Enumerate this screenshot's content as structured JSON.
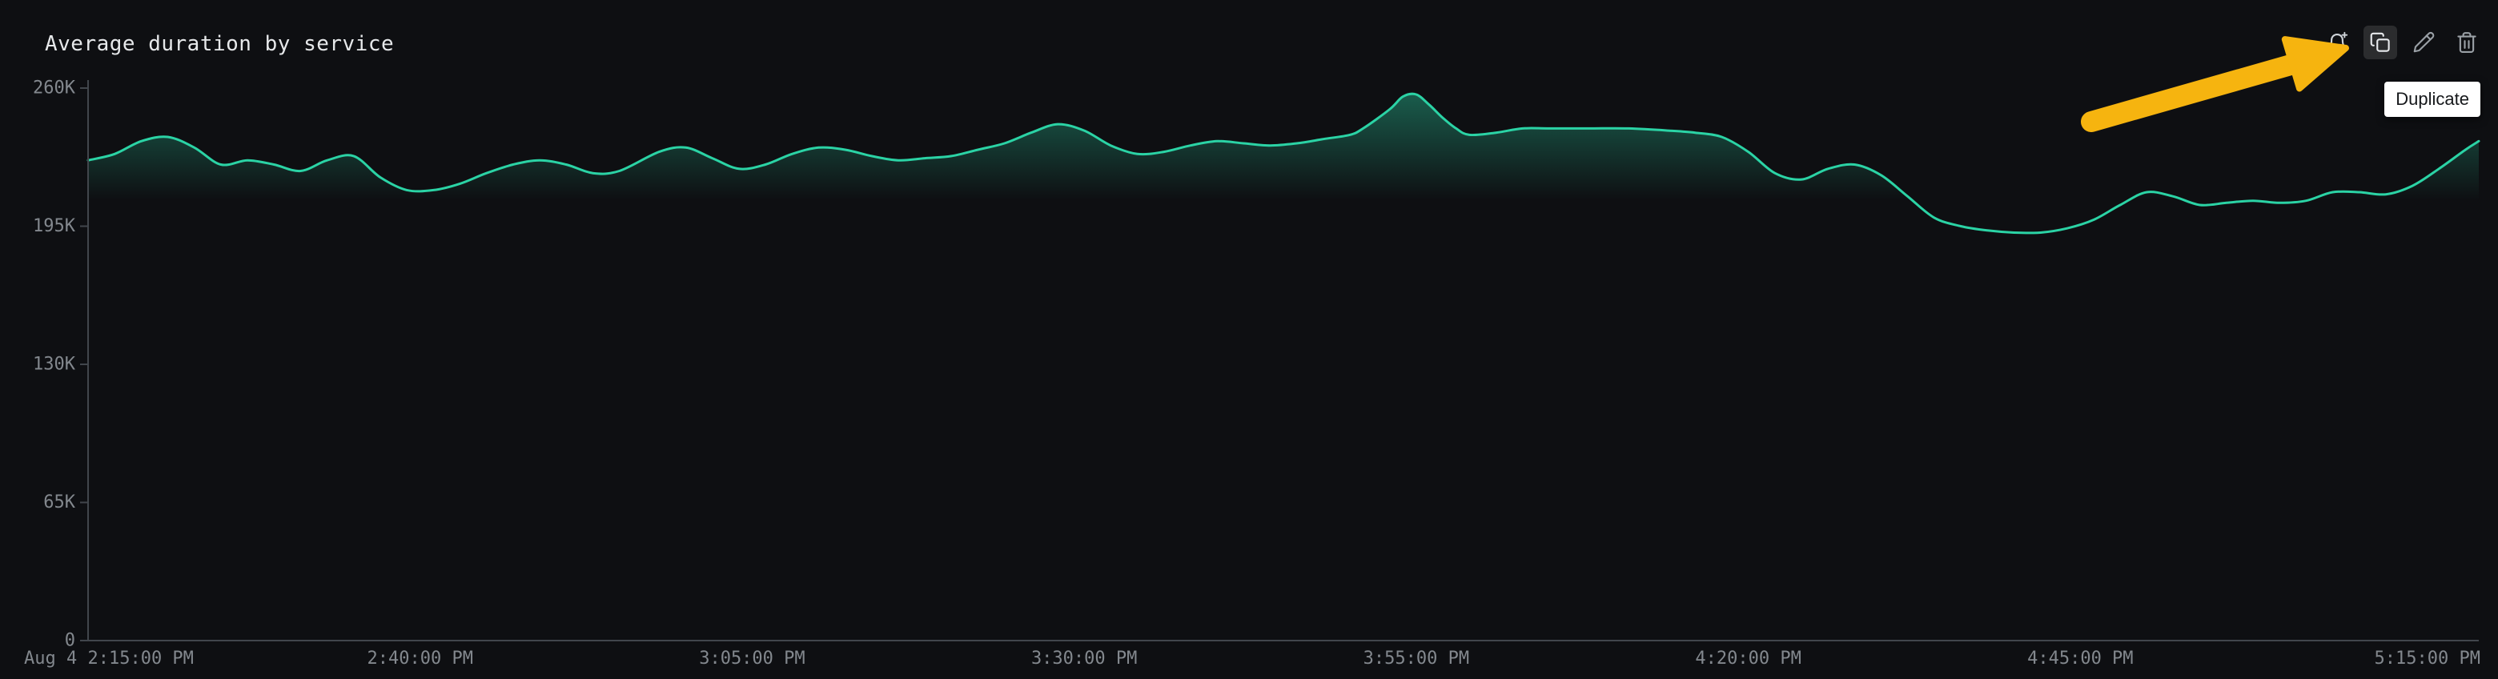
{
  "panel": {
    "title": "Average duration by service",
    "toolbar": [
      {
        "name": "create-monitor",
        "icon": "bell-plus-icon"
      },
      {
        "name": "duplicate",
        "icon": "copy-icon",
        "state": "hover"
      },
      {
        "name": "edit",
        "icon": "pencil-icon"
      },
      {
        "name": "delete",
        "icon": "trash-icon"
      }
    ],
    "tooltip_label": "Duplicate"
  },
  "colors": {
    "background": "#0e0f12",
    "title_text": "#e6e8ea",
    "axis_text": "#83888e",
    "axis_line": "#41464c",
    "series_line": "#2bd3a5",
    "tooltip_bg": "#ffffff",
    "tooltip_text": "#16181b",
    "annotation_arrow": "#f6b40f"
  },
  "chart_data": {
    "type": "line",
    "title": "Average duration by service",
    "ylim": [
      0,
      260000
    ],
    "x_range_minutes": [
      0,
      180
    ],
    "grid": false,
    "legend": false,
    "y_ticks": [
      {
        "label": "0",
        "value": 0
      },
      {
        "label": "65K",
        "value": 65000
      },
      {
        "label": "130K",
        "value": 130000
      },
      {
        "label": "195K",
        "value": 195000
      },
      {
        "label": "260K",
        "value": 260000
      }
    ],
    "x_ticks": [
      {
        "label": "Aug 4 2:15:00 PM",
        "minutes": 0,
        "align": "left"
      },
      {
        "label": "2:40:00 PM",
        "minutes": 25,
        "align": "center"
      },
      {
        "label": "3:05:00 PM",
        "minutes": 50,
        "align": "center"
      },
      {
        "label": "3:30:00 PM",
        "minutes": 75,
        "align": "center"
      },
      {
        "label": "3:55:00 PM",
        "minutes": 100,
        "align": "center"
      },
      {
        "label": "4:20:00 PM",
        "minutes": 125,
        "align": "center"
      },
      {
        "label": "4:45:00 PM",
        "minutes": 150,
        "align": "center"
      },
      {
        "label": "5:15:00 PM",
        "minutes": 180,
        "align": "right"
      }
    ],
    "series": [
      {
        "name": "Average duration",
        "color": "#2bd3a5",
        "x_minutes": [
          0,
          2,
          4,
          6,
          8,
          10,
          12,
          14,
          16,
          18,
          20,
          22,
          24,
          26,
          28,
          30,
          32,
          34,
          36,
          38,
          40,
          43,
          45,
          47,
          49,
          51,
          53,
          55,
          57,
          59,
          61,
          63,
          65,
          67,
          69,
          71,
          73,
          75,
          77,
          79,
          81,
          83,
          85,
          87,
          89,
          91,
          93,
          95,
          96,
          98,
          99,
          100,
          101,
          102,
          103,
          104,
          106,
          108,
          110,
          113,
          116,
          119,
          121,
          123,
          125,
          127,
          129,
          131,
          133,
          135,
          137,
          139,
          141,
          143,
          145,
          147,
          149,
          151,
          153,
          155,
          157,
          159,
          161,
          163,
          165,
          167,
          169,
          171,
          173,
          175,
          177,
          179,
          180
        ],
        "values": [
          226000,
          229000,
          235000,
          237000,
          232000,
          224000,
          226000,
          224000,
          221000,
          226000,
          228000,
          218000,
          212000,
          212000,
          215000,
          220000,
          224000,
          226000,
          224000,
          220000,
          221000,
          230000,
          232000,
          227000,
          222000,
          224000,
          229000,
          232000,
          231000,
          228000,
          226000,
          227000,
          228000,
          231000,
          234000,
          239000,
          243000,
          240000,
          233000,
          229000,
          230000,
          233000,
          235000,
          234000,
          233000,
          234000,
          236000,
          238000,
          241000,
          250000,
          256000,
          257000,
          252000,
          246000,
          241000,
          238000,
          239000,
          241000,
          241000,
          241000,
          241000,
          240000,
          239000,
          237000,
          230000,
          220000,
          217000,
          222000,
          224000,
          219000,
          209000,
          199000,
          195000,
          193000,
          192000,
          192000,
          194000,
          198000,
          205000,
          211000,
          209000,
          205000,
          206000,
          207000,
          206000,
          207000,
          211000,
          211000,
          210000,
          214000,
          222000,
          231000,
          235000
        ]
      }
    ]
  }
}
